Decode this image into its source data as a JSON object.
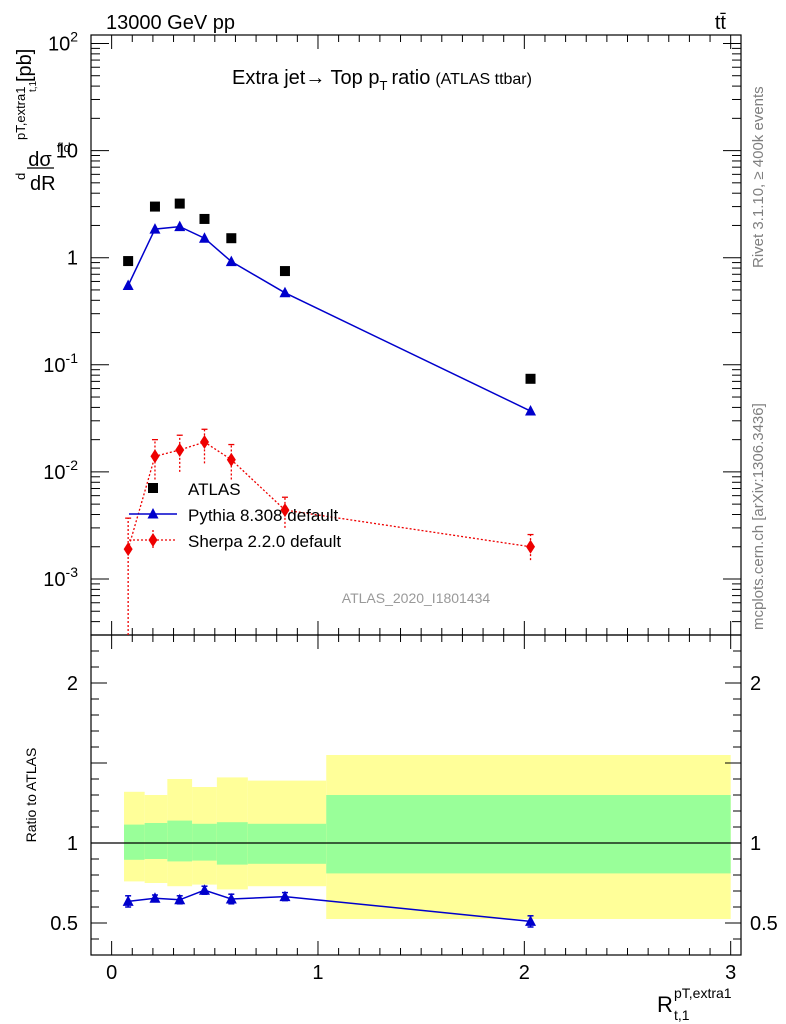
{
  "header": {
    "left": "13000 GeV pp",
    "right": "tt̄"
  },
  "side_text": {
    "rivet": "Rivet 3.1.10, ≥ 400k events",
    "mcplots": "mcplots.cern.ch [arXiv:1306.3436]"
  },
  "chart_data": {
    "type": "scatter",
    "title": "Extra jet→ Top p",
    "title_sub": "T",
    "title_rest": "ratio",
    "title_tag": "(ATLAS ttbar)",
    "analysis_id": "ATLAS_2020_I1801434",
    "ylabel_main": "[pb]",
    "xlabel": "R",
    "xlabel_sup": "pT,extra1",
    "xlabel_sub": "t,1",
    "ylabel_ratio": "Ratio to ATLAS",
    "xlim": [
      -0.1,
      3.05
    ],
    "ylim_main": [
      0.0003,
      120
    ],
    "ylim_ratio": [
      0.3,
      2.3
    ],
    "x_ticks": [
      "0",
      "1",
      "2",
      "3"
    ],
    "y_ticks_main": [
      {
        "base": "10",
        "exp": "-3",
        "v": 0.001
      },
      {
        "base": "10",
        "exp": "-2",
        "v": 0.01
      },
      {
        "base": "10",
        "exp": "-1",
        "v": 0.1
      },
      {
        "base": "1",
        "exp": "",
        "v": 1
      },
      {
        "base": "10",
        "exp": "",
        "v": 10
      },
      {
        "base": "10",
        "exp": "2",
        "v": 100
      }
    ],
    "y_ticks_ratio": [
      "0.5",
      "1",
      "2"
    ],
    "bins": [
      [
        0.06,
        0.16
      ],
      [
        0.16,
        0.27
      ],
      [
        0.27,
        0.39
      ],
      [
        0.39,
        0.51
      ],
      [
        0.51,
        0.66
      ],
      [
        0.66,
        1.04
      ],
      [
        1.04,
        3.0
      ]
    ],
    "x": [
      0.08,
      0.21,
      0.33,
      0.45,
      0.58,
      0.84,
      2.03
    ],
    "series": [
      {
        "name": "ATLAS",
        "values": [
          0.93,
          3.0,
          3.2,
          2.3,
          1.52,
          0.75,
          0.074
        ],
        "color": "#000000",
        "marker": "square"
      },
      {
        "name": "Pythia 8.308 default",
        "values": [
          0.55,
          1.85,
          1.95,
          1.52,
          0.92,
          0.47,
          0.037
        ],
        "color": "#0000cc",
        "marker": "triangle"
      },
      {
        "name": "Sherpa 2.2.0 default",
        "values": [
          0.0019,
          0.014,
          0.016,
          0.019,
          0.013,
          0.0044,
          0.002
        ],
        "color": "#ee0000",
        "marker": "diamond"
      }
    ],
    "sherpa_err_low": [
      5e-05,
      0.0085,
      0.01,
      0.012,
      0.0085,
      0.003,
      0.0015
    ],
    "sherpa_err_high": [
      0.0037,
      0.02,
      0.022,
      0.025,
      0.018,
      0.0058,
      0.0026
    ],
    "ratio": {
      "pythia": [
        0.635,
        0.655,
        0.645,
        0.705,
        0.65,
        0.665,
        0.51
      ],
      "pythia_err": [
        0.035,
        0.02,
        0.025,
        0.025,
        0.03,
        0.025,
        0.035
      ],
      "band_green_low": [
        0.895,
        0.9,
        0.885,
        0.89,
        0.865,
        0.87,
        0.81
      ],
      "band_green_high": [
        1.115,
        1.125,
        1.14,
        1.12,
        1.13,
        1.12,
        1.3
      ],
      "band_yellow_low": [
        0.76,
        0.75,
        0.73,
        0.74,
        0.71,
        0.73,
        0.525
      ],
      "band_yellow_high": [
        1.32,
        1.3,
        1.4,
        1.35,
        1.41,
        1.39,
        1.55
      ]
    },
    "colors": {
      "green": "#99ff99",
      "yellow": "#ffff99"
    },
    "grid": false,
    "legend_position": "middle-left"
  }
}
